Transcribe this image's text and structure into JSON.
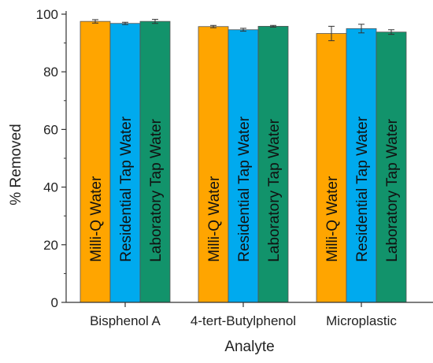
{
  "chart_data": {
    "type": "bar",
    "categories": [
      "Bisphenol A",
      "4-tert-Butylphenol",
      "Microplastic"
    ],
    "series": [
      {
        "name": "Milli-Q Water",
        "color": "#ffa500",
        "values": [
          97.5,
          95.7,
          93.3
        ],
        "errors": [
          0.6,
          0.4,
          2.5
        ]
      },
      {
        "name": "Residential Tap Water",
        "color": "#00aaee",
        "values": [
          96.8,
          94.6,
          95.0
        ],
        "errors": [
          0.4,
          0.5,
          1.5
        ]
      },
      {
        "name": "Laboratory Tap Water",
        "color": "#12936b",
        "values": [
          97.5,
          95.8,
          93.8
        ],
        "errors": [
          0.7,
          0.3,
          0.8
        ]
      }
    ],
    "xlabel": "Analyte",
    "ylabel": "% Removed",
    "ylim": [
      0,
      100
    ],
    "yticks": [
      0,
      20,
      40,
      60,
      80,
      100
    ],
    "grid": false
  }
}
